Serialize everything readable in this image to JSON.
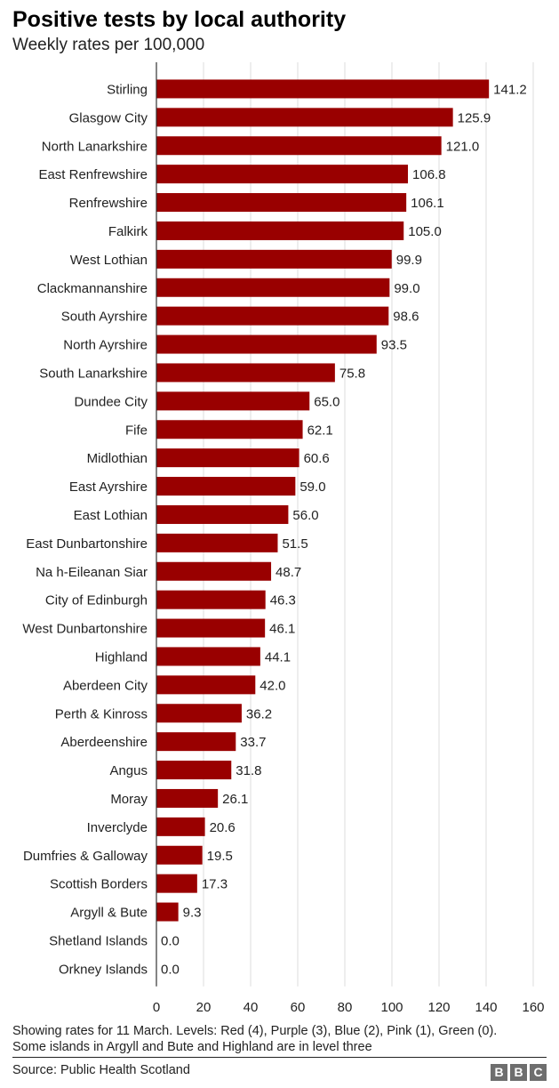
{
  "title": "Positive tests by local authority",
  "subtitle": "Weekly rates per 100,000",
  "note_lines": [
    "Showing rates for 11 March. Levels: Red (4), Purple (3), Blue (2), Pink (1), Green (0).",
    "Some islands in Argyll and Bute and Highland are in level three"
  ],
  "source": "Source: Public Health Scotland",
  "logo": {
    "letters": [
      "B",
      "B",
      "C"
    ]
  },
  "colors": {
    "bar": "#990000",
    "grid": "#dddddd",
    "axis": "#333333"
  },
  "chart_data": {
    "type": "bar",
    "orientation": "horizontal",
    "title": "Positive tests by local authority",
    "subtitle": "Weekly rates per 100,000",
    "categories": [
      "Stirling",
      "Glasgow City",
      "North Lanarkshire",
      "East Renfrewshire",
      "Renfrewshire",
      "Falkirk",
      "West Lothian",
      "Clackmannanshire",
      "South Ayrshire",
      "North Ayrshire",
      "South Lanarkshire",
      "Dundee City",
      "Fife",
      "Midlothian",
      "East Ayrshire",
      "East Lothian",
      "East Dunbartonshire",
      "Na h-Eileanan Siar",
      "City of Edinburgh",
      "West Dunbartonshire",
      "Highland",
      "Aberdeen City",
      "Perth & Kinross",
      "Aberdeenshire",
      "Angus",
      "Moray",
      "Inverclyde",
      "Dumfries & Galloway",
      "Scottish Borders",
      "Argyll & Bute",
      "Shetland Islands",
      "Orkney Islands"
    ],
    "values": [
      141.2,
      125.9,
      121.0,
      106.8,
      106.1,
      105.0,
      99.9,
      99.0,
      98.6,
      93.5,
      75.8,
      65.0,
      62.1,
      60.6,
      59.0,
      56.0,
      51.5,
      48.7,
      46.3,
      46.1,
      44.1,
      42.0,
      36.2,
      33.7,
      31.8,
      26.1,
      20.6,
      19.5,
      17.3,
      9.3,
      0.0,
      0.0
    ],
    "value_labels": [
      "141.2",
      "125.9",
      "121.0",
      "106.8",
      "106.1",
      "105.0",
      "99.9",
      "99.0",
      "98.6",
      "93.5",
      "75.8",
      "65.0",
      "62.1",
      "60.6",
      "59.0",
      "56.0",
      "51.5",
      "48.7",
      "46.3",
      "46.1",
      "44.1",
      "42.0",
      "36.2",
      "33.7",
      "31.8",
      "26.1",
      "20.6",
      "19.5",
      "17.3",
      "9.3",
      "0.0",
      "0.0"
    ],
    "xlim": [
      0,
      160
    ],
    "xticks": [
      0,
      20,
      40,
      60,
      80,
      100,
      120,
      140,
      160
    ],
    "grid": "vertical",
    "legend": "none"
  }
}
